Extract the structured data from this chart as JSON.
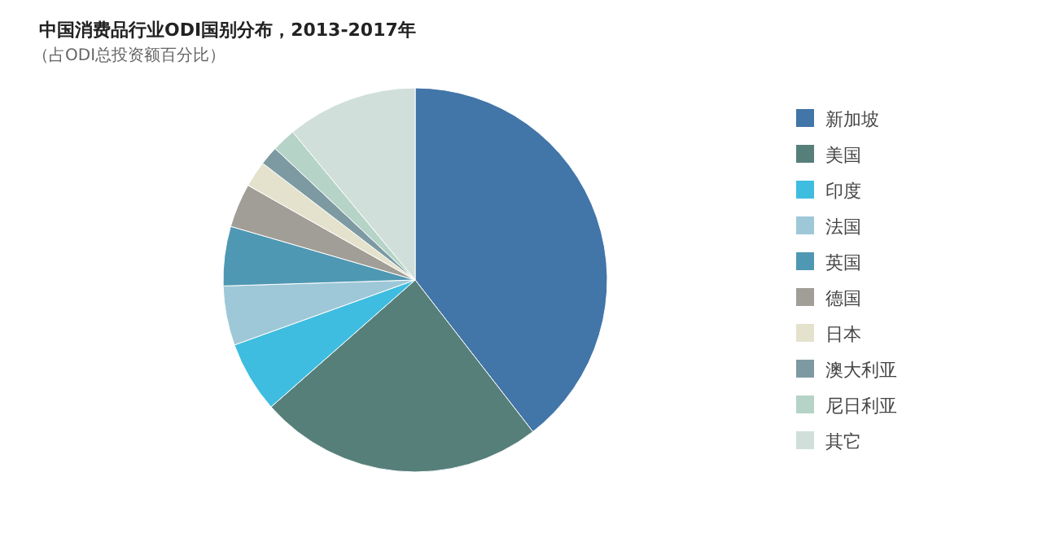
{
  "chart_data": {
    "type": "pie",
    "title": "中国消费品行业ODI国别分布，2013-2017年",
    "subtitle": "（占ODI总投资额百分比）",
    "categories": [
      "新加坡",
      "美国",
      "印度",
      "法国",
      "英国",
      "德国",
      "日本",
      "澳大利亚",
      "尼日利亚",
      "其它"
    ],
    "values": [
      39.5,
      24,
      6,
      5,
      5,
      3.7,
      2.2,
      1.6,
      2,
      11
    ],
    "colors": [
      "#4275a8",
      "#567f7a",
      "#3fbde0",
      "#9ec8d8",
      "#4f98b3",
      "#a09e96",
      "#e4e2cc",
      "#7d9aa3",
      "#b5d3c6",
      "#d0dfd9"
    ],
    "legend": "right"
  }
}
